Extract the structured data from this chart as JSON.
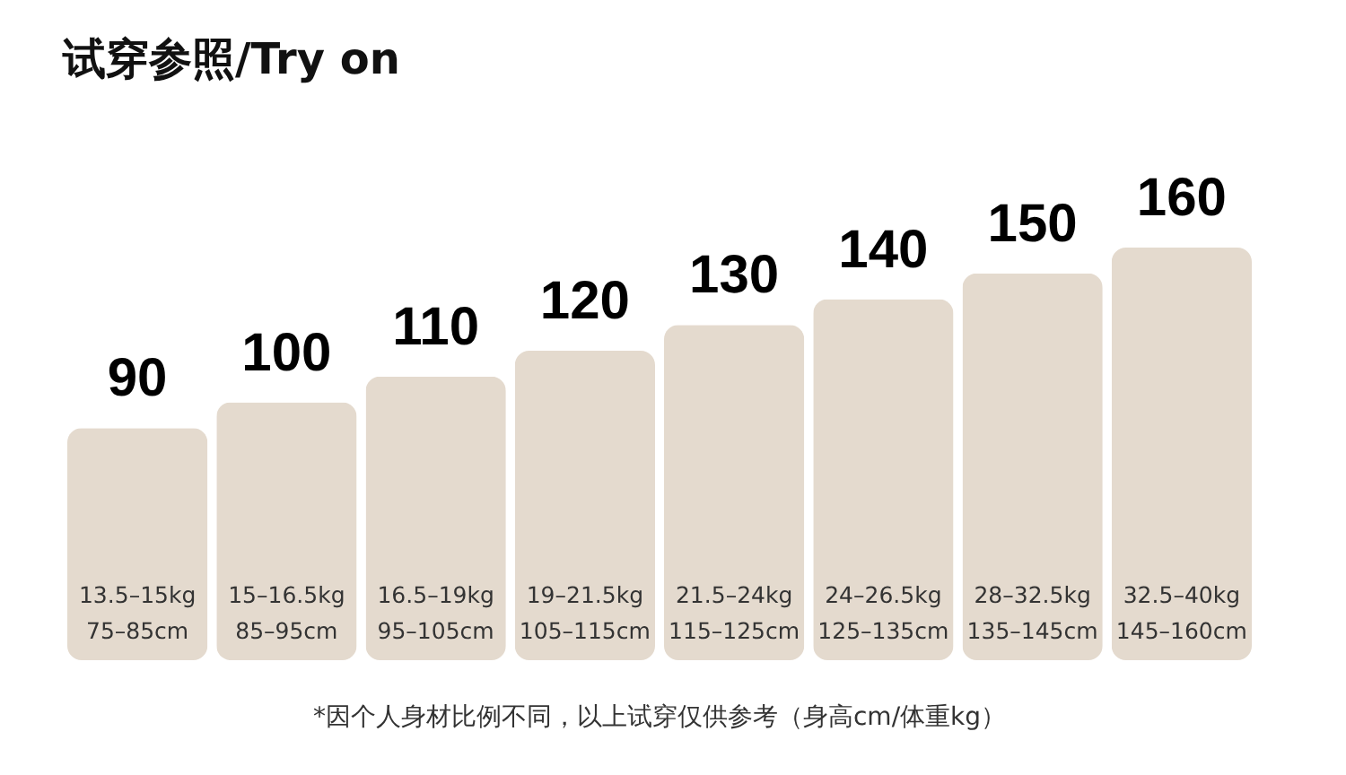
{
  "chart_data": {
    "type": "bar",
    "title": "试穿参照/Try on",
    "categories": [
      "13.5–15kg\n75–85cm",
      "15–16.5kg\n85–95cm",
      "16.5–19kg\n95–105cm",
      "19–21.5kg\n105–115cm",
      "21.5–24kg\n115–125cm",
      "24–26.5kg\n125–135cm",
      "28–32.5kg\n135–145cm",
      "32.5–40kg\n145–160cm"
    ],
    "values": [
      90,
      100,
      110,
      120,
      130,
      140,
      150,
      160
    ],
    "color": "#e4dace",
    "data_labels": true,
    "tick_labels": false,
    "grid": false,
    "annotations": [
      "*因个人身材比例不同，以上试穿仅供参考（身高cm/体重kg）"
    ]
  }
}
